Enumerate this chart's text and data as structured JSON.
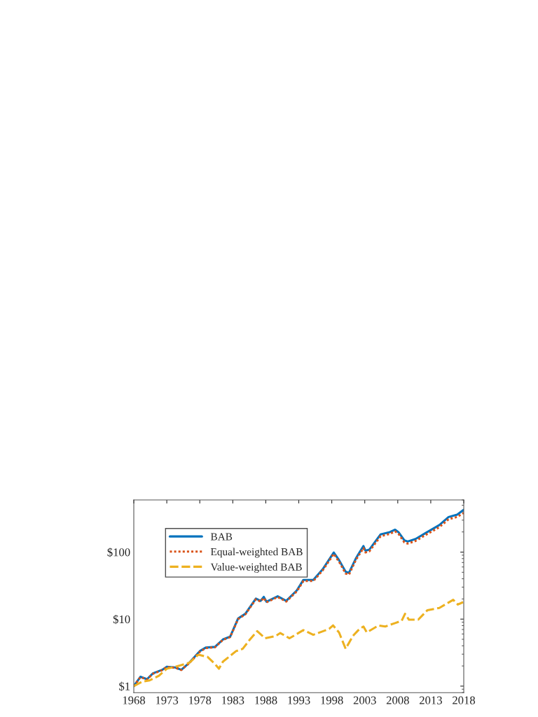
{
  "chart_data": {
    "type": "line",
    "log": "y",
    "grid": false,
    "legend": "top left",
    "marker": "none",
    "xlim": [
      1968,
      2018
    ],
    "xticks": [
      1968,
      1973,
      1978,
      1983,
      1988,
      1993,
      1998,
      2003,
      2008,
      2013,
      2018
    ],
    "ylim": [
      0.8,
      600
    ],
    "yticks": [
      {
        "value": 1,
        "label": "$1"
      },
      {
        "value": 10,
        "label": "$10"
      },
      {
        "value": 100,
        "label": "$100"
      }
    ],
    "series": [
      {
        "name": "BAB",
        "color": "#0072bd",
        "line_style": "solid",
        "x": [
          1968,
          1969,
          1970,
          1970.9,
          1972.3,
          1973,
          1974.3,
          1975.2,
          1976.4,
          1978,
          1978.9,
          1980.3,
          1981.5,
          1982.6,
          1983.8,
          1984.9,
          1986.5,
          1987.2,
          1987.7,
          1988.1,
          1989.8,
          1991.1,
          1992.7,
          1993.7,
          1995.2,
          1996.6,
          1998.3,
          1999.1,
          2000.1,
          2000.6,
          2001.7,
          2002.8,
          2003.1,
          2003.7,
          2005.4,
          2006.8,
          2007.6,
          2008.1,
          2009,
          2009.5,
          2010.7,
          2012.2,
          2014.3,
          2015.7,
          2017,
          2018
        ],
        "values": [
          1,
          1.38,
          1.27,
          1.55,
          1.75,
          1.95,
          1.9,
          1.75,
          2.23,
          3.33,
          3.76,
          3.85,
          4.97,
          5.47,
          10.2,
          12,
          20.3,
          18.7,
          21.5,
          18.2,
          21.9,
          18.7,
          26.8,
          38.5,
          38.5,
          55,
          98.5,
          76,
          51,
          49,
          82,
          123,
          105,
          109,
          184,
          199,
          216,
          199,
          150,
          144,
          157,
          192,
          253,
          334,
          363,
          428
        ]
      },
      {
        "name": "Equal-weighted BAB",
        "color": "#d95319",
        "line_style": "dotted",
        "x": [
          1968,
          1969,
          1970,
          1970.9,
          1972.3,
          1973,
          1974.3,
          1975.2,
          1976.4,
          1978,
          1978.9,
          1980.3,
          1981.5,
          1982.6,
          1983.8,
          1984.9,
          1986.5,
          1987.2,
          1987.7,
          1988.1,
          1989.8,
          1991.1,
          1992.7,
          1993.7,
          1995.2,
          1996.6,
          1998.3,
          1999.1,
          2000.1,
          2000.6,
          2001.7,
          2002.8,
          2003.1,
          2003.7,
          2005.4,
          2006.8,
          2007.6,
          2008.1,
          2009,
          2009.5,
          2010.7,
          2012.2,
          2014.3,
          2015.7,
          2017,
          2018
        ],
        "values": [
          1,
          1.36,
          1.26,
          1.53,
          1.73,
          1.93,
          1.88,
          1.74,
          2.2,
          3.25,
          3.7,
          3.8,
          4.9,
          5.4,
          10,
          11.8,
          19.8,
          18.3,
          20.8,
          17.8,
          21.4,
          18.3,
          26,
          37,
          37,
          53,
          94,
          72,
          48,
          46,
          78,
          115,
          99,
          103,
          173,
          187,
          204,
          188,
          140,
          134,
          147,
          180,
          236,
          310,
          335,
          385
        ]
      },
      {
        "name": "Value-weighted BAB",
        "color": "#edb120",
        "line_style": "dashed",
        "x": [
          1968,
          1969.3,
          1970.4,
          1971.8,
          1973,
          1974.6,
          1976.4,
          1977.8,
          1979.2,
          1980.3,
          1980.9,
          1981.5,
          1983.5,
          1984.5,
          1985.6,
          1986.7,
          1987.9,
          1989.5,
          1990.2,
          1991.6,
          1993.7,
          1995.2,
          1997.6,
          1998.2,
          1999.1,
          2000.1,
          2001.2,
          2002.2,
          2002.8,
          2003.3,
          2005.1,
          2006.1,
          2007.6,
          2008.6,
          2009.1,
          2009.7,
          2011.1,
          2012.5,
          2014.3,
          2016.4,
          2017.1,
          2017.9
        ],
        "values": [
          1,
          1.17,
          1.22,
          1.43,
          1.82,
          1.98,
          2.23,
          2.95,
          2.72,
          2.14,
          1.82,
          2.32,
          3.33,
          3.6,
          4.97,
          6.6,
          5.18,
          5.6,
          6.2,
          5.18,
          6.85,
          5.84,
          7.14,
          8.05,
          6.33,
          3.61,
          5.6,
          7.14,
          7.75,
          6.33,
          8.05,
          7.75,
          8.73,
          9.45,
          12,
          9.8,
          9.8,
          13.6,
          14.7,
          19.4,
          16.5,
          17.9
        ]
      }
    ]
  }
}
